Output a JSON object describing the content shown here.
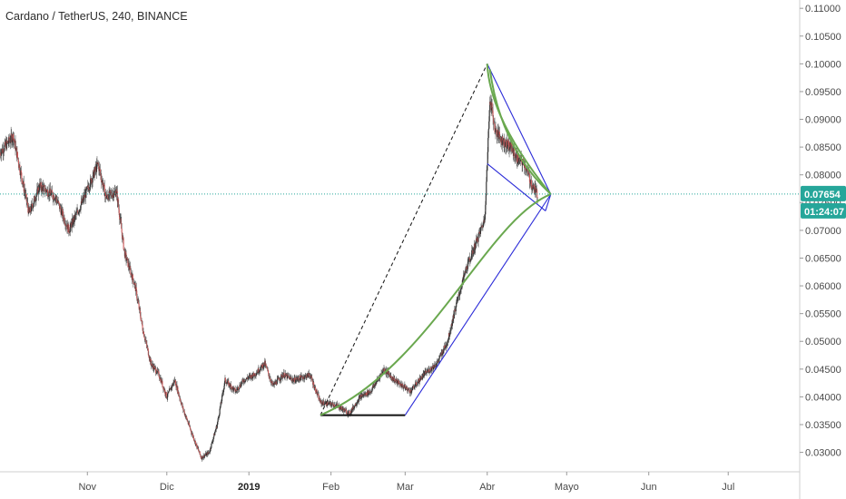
{
  "header": {
    "title": "Cardano / TetherUS, 240, BINANCE"
  },
  "colors": {
    "up": "#2a2a2a",
    "down": "#d05a5a",
    "wick": "#555555",
    "price_line": "#26a69a",
    "price_tag_bg": "#26a69a",
    "countdown_bg": "#26a69a",
    "pattern_blue": "#2b2bd8",
    "arc_green": "#6aa84f",
    "base_black": "#111111",
    "axis": "#cfcfcf"
  },
  "chart_data": {
    "type": "candlestick",
    "symbol": "ADA/USDT",
    "y_axis": {
      "position": "right",
      "ylim": [
        0.0265,
        0.1115
      ],
      "ticks": [
        "0.11000",
        "0.10500",
        "0.10000",
        "0.09500",
        "0.09000",
        "0.08500",
        "0.08000",
        "0.07500",
        "0.07000",
        "0.06500",
        "0.06000",
        "0.05500",
        "0.05000",
        "0.04500",
        "0.04000",
        "0.03500",
        "0.03000"
      ],
      "tick_values": [
        0.11,
        0.105,
        0.1,
        0.095,
        0.09,
        0.085,
        0.08,
        0.075,
        0.07,
        0.065,
        0.06,
        0.055,
        0.05,
        0.045,
        0.04,
        0.035,
        0.03
      ]
    },
    "x_axis": {
      "xlim": [
        "2018-09-29",
        "2019-07-28"
      ],
      "labels": [
        {
          "date": "2018-11-01",
          "text": "Nov",
          "bold": false
        },
        {
          "date": "2018-12-01",
          "text": "Dic",
          "bold": false
        },
        {
          "date": "2019-01-01",
          "text": "2019",
          "bold": true
        },
        {
          "date": "2019-02-01",
          "text": "Feb",
          "bold": false
        },
        {
          "date": "2019-03-01",
          "text": "Mar",
          "bold": false
        },
        {
          "date": "2019-04-01",
          "text": "Abr",
          "bold": false
        },
        {
          "date": "2019-05-01",
          "text": "Mayo",
          "bold": false
        },
        {
          "date": "2019-06-01",
          "text": "Jun",
          "bold": false
        },
        {
          "date": "2019-07-01",
          "text": "Jul",
          "bold": false
        }
      ]
    },
    "price_path": {
      "start": "2018-09-29",
      "end": "2019-04-20",
      "anchors": [
        [
          "2018-09-29",
          0.084
        ],
        [
          "2018-10-04",
          0.087
        ],
        [
          "2018-10-07",
          0.08
        ],
        [
          "2018-10-10",
          0.073
        ],
        [
          "2018-10-14",
          0.078
        ],
        [
          "2018-10-20",
          0.076
        ],
        [
          "2018-10-25",
          0.07
        ],
        [
          "2018-10-30",
          0.075
        ],
        [
          "2018-11-05",
          0.082
        ],
        [
          "2018-11-08",
          0.076
        ],
        [
          "2018-11-12",
          0.077
        ],
        [
          "2018-11-15",
          0.066
        ],
        [
          "2018-11-19",
          0.06
        ],
        [
          "2018-11-22",
          0.052
        ],
        [
          "2018-11-25",
          0.046
        ],
        [
          "2018-11-28",
          0.044
        ],
        [
          "2018-12-01",
          0.04
        ],
        [
          "2018-12-04",
          0.043
        ],
        [
          "2018-12-07",
          0.038
        ],
        [
          "2018-12-10",
          0.034
        ],
        [
          "2018-12-14",
          0.029
        ],
        [
          "2018-12-17",
          0.03
        ],
        [
          "2018-12-20",
          0.035
        ],
        [
          "2018-12-23",
          0.043
        ],
        [
          "2018-12-27",
          0.041
        ],
        [
          "2018-12-30",
          0.043
        ],
        [
          "2019-01-03",
          0.044
        ],
        [
          "2019-01-07",
          0.046
        ],
        [
          "2019-01-10",
          0.042
        ],
        [
          "2019-01-14",
          0.044
        ],
        [
          "2019-01-18",
          0.043
        ],
        [
          "2019-01-24",
          0.044
        ],
        [
          "2019-01-28",
          0.039
        ],
        [
          "2019-02-03",
          0.0385
        ],
        [
          "2019-02-08",
          0.037
        ],
        [
          "2019-02-12",
          0.04
        ],
        [
          "2019-02-16",
          0.041
        ],
        [
          "2019-02-21",
          0.045
        ],
        [
          "2019-02-25",
          0.043
        ],
        [
          "2019-03-03",
          0.041
        ],
        [
          "2019-03-08",
          0.044
        ],
        [
          "2019-03-13",
          0.046
        ],
        [
          "2019-03-17",
          0.05
        ],
        [
          "2019-03-20",
          0.056
        ],
        [
          "2019-03-24",
          0.063
        ],
        [
          "2019-03-28",
          0.068
        ],
        [
          "2019-03-31",
          0.072
        ],
        [
          "2019-04-01",
          0.082
        ],
        [
          "2019-04-02",
          0.094
        ],
        [
          "2019-04-04",
          0.088
        ],
        [
          "2019-04-07",
          0.086
        ],
        [
          "2019-04-10",
          0.085
        ],
        [
          "2019-04-12",
          0.083
        ],
        [
          "2019-04-15",
          0.082
        ],
        [
          "2019-04-18",
          0.078
        ],
        [
          "2019-04-20",
          0.0765
        ]
      ]
    },
    "last_price": {
      "value": 0.07654,
      "label": "0.07654",
      "countdown": "01:24:07"
    },
    "drawings": {
      "blue_lines": [
        [
          [
            "2019-03-01",
            0.0367
          ],
          [
            "2019-04-25",
            0.0765
          ]
        ],
        [
          [
            "2019-04-01",
            0.1
          ],
          [
            "2019-04-25",
            0.0765
          ]
        ],
        [
          [
            "2019-04-01",
            0.082
          ],
          [
            "2019-04-23",
            0.0735
          ]
        ],
        [
          [
            "2019-04-23",
            0.0735
          ],
          [
            "2019-04-25",
            0.0765
          ]
        ]
      ],
      "black_base": [
        [
          "2019-01-28",
          0.0367
        ],
        [
          "2019-03-01",
          0.0367
        ]
      ],
      "dashed_leg": [
        [
          "2019-01-28",
          0.0367
        ],
        [
          "2019-04-01",
          0.1
        ]
      ],
      "green_arcs": [
        [
          [
            "2019-01-28",
            0.0367
          ],
          [
            "2019-03-10",
            0.045
          ],
          [
            "2019-04-01",
            0.072
          ],
          [
            "2019-04-25",
            0.0765
          ]
        ],
        [
          [
            "2019-04-02",
            0.099
          ],
          [
            "2019-04-06",
            0.085
          ],
          [
            "2019-04-25",
            0.0765
          ]
        ],
        [
          [
            "2019-04-01",
            0.1
          ],
          [
            "2019-04-02",
            0.09
          ],
          [
            "2019-04-25",
            0.0765
          ]
        ]
      ]
    }
  }
}
